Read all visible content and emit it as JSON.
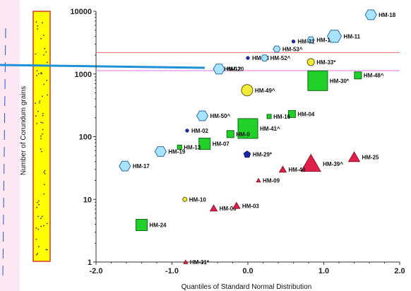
{
  "colors": {
    "background": "#ffffff",
    "bar_fill": "#ffff00",
    "bar_stroke": "#d23a2a",
    "regression_line": "#1f8fd6",
    "line_upper": "#e87070",
    "line_lower": "#e070e0",
    "hexagon": "#a8e4ff",
    "square": "#22d02a",
    "triangle": "#e0204a",
    "circle_yellow": "#f2ec3a",
    "circle_navy": "#1a2aa8"
  },
  "icons": {
    "hexagon": "hexagon-marker",
    "square": "square-marker",
    "triangle": "triangle-marker",
    "circle": "circle-marker",
    "diamond": "diamond-marker",
    "pentagon": "pentagon-marker"
  },
  "chart_data": {
    "type": "scatter",
    "title": "",
    "xlabel": "Quantiles of Standard Normal Distribution",
    "ylabel": "Number of Corundum grains",
    "xlim": [
      -2.0,
      2.0
    ],
    "ylim": [
      1,
      10000
    ],
    "yscale": "log",
    "grid": false,
    "x_ticks": [
      "-2.0",
      "-1.0",
      "0.0",
      "1.0",
      "2.0"
    ],
    "y_ticks": [
      "1",
      "10",
      "100",
      "1000",
      "10000"
    ],
    "y_tick_values": [
      1,
      10,
      100,
      1000,
      10000
    ],
    "x_tick_values": [
      -2,
      -1,
      0,
      1,
      2
    ],
    "reference_lines": [
      {
        "y": 2200,
        "color": "#e87070"
      },
      {
        "y": 1130,
        "color": "#e070e0"
      }
    ],
    "points": [
      {
        "label": "HM-18",
        "x": 1.62,
        "y": 8800,
        "shape": "hexagon",
        "size": "m"
      },
      {
        "label": "HM-11",
        "x": 1.14,
        "y": 4000,
        "shape": "hexagon",
        "size": "l"
      },
      {
        "label": "HM-1",
        "x": 0.83,
        "y": 3500,
        "shape": "hexagon",
        "size": "s"
      },
      {
        "label": "HM-31",
        "x": 0.6,
        "y": 3300,
        "shape": "circle",
        "size": "xs"
      },
      {
        "label": "HM-53^",
        "x": 0.38,
        "y": 2500,
        "shape": "hexagon",
        "size": "s"
      },
      {
        "label": "HM-58",
        "x": 0.0,
        "y": 1800,
        "shape": "circle",
        "size": "xs"
      },
      {
        "label": "HM-52^",
        "x": 0.22,
        "y": 1800,
        "shape": "hexagon",
        "size": "s"
      },
      {
        "label": "HM-33*",
        "x": 0.83,
        "y": 1550,
        "shape": "circle_yellow",
        "size": "s"
      },
      {
        "label": "HM-12",
        "x": -0.37,
        "y": 1200,
        "shape": "circle_yellow",
        "size": "xs"
      },
      {
        "label": "HM-20",
        "x": -0.38,
        "y": 1200,
        "shape": "hexagon",
        "size": "m"
      },
      {
        "label": "HM-48^",
        "x": 1.45,
        "y": 950,
        "shape": "square",
        "size": "s"
      },
      {
        "label": "HM-30*",
        "x": 0.92,
        "y": 780,
        "shape": "square",
        "size": "xl"
      },
      {
        "label": "HM-49^",
        "x": -0.01,
        "y": 550,
        "shape": "circle_yellow",
        "size": "m"
      },
      {
        "label": "HM-04",
        "x": 0.58,
        "y": 230,
        "shape": "square",
        "size": "s"
      },
      {
        "label": "HM-16",
        "x": 0.28,
        "y": 210,
        "shape": "square",
        "size": "xs"
      },
      {
        "label": "HM-50^",
        "x": -0.6,
        "y": 215,
        "shape": "hexagon",
        "size": "m"
      },
      {
        "label": "HM-41^",
        "x": 0.0,
        "y": 135,
        "shape": "square",
        "size": "xl"
      },
      {
        "label": "HM-02",
        "x": -0.8,
        "y": 125,
        "shape": "circle",
        "size": "xs"
      },
      {
        "label": "HM-0",
        "x": -0.23,
        "y": 110,
        "shape": "square",
        "size": "s"
      },
      {
        "label": "HM-07",
        "x": -0.57,
        "y": 77,
        "shape": "square",
        "size": "m"
      },
      {
        "label": "HM-13",
        "x": -0.9,
        "y": 68,
        "shape": "square",
        "size": "xs"
      },
      {
        "label": "HM-19",
        "x": -1.15,
        "y": 58,
        "shape": "hexagon",
        "size": "m"
      },
      {
        "label": "HM-29*",
        "x": -0.01,
        "y": 52,
        "shape": "pentagon",
        "size": "s"
      },
      {
        "label": "HM-17",
        "x": -1.62,
        "y": 34,
        "shape": "hexagon",
        "size": "m"
      },
      {
        "label": "HM-39^",
        "x": 0.83,
        "y": 37,
        "shape": "triangle",
        "size": "xl"
      },
      {
        "label": "HM-25",
        "x": 1.4,
        "y": 47,
        "shape": "triangle",
        "size": "m"
      },
      {
        "label": "HM-40",
        "x": 0.46,
        "y": 30,
        "shape": "triangle",
        "size": "s"
      },
      {
        "label": "HM-09",
        "x": 0.14,
        "y": 20,
        "shape": "triangle",
        "size": "xs"
      },
      {
        "label": "HM-10",
        "x": -0.83,
        "y": 10,
        "shape": "circle_yellow",
        "size": "xs"
      },
      {
        "label": "HM-06",
        "x": -0.45,
        "y": 7.2,
        "shape": "triangle",
        "size": "s"
      },
      {
        "label": "HM-03",
        "x": -0.15,
        "y": 7.9,
        "shape": "triangle",
        "size": "s"
      },
      {
        "label": "HM-24",
        "x": -1.4,
        "y": 3.9,
        "shape": "square",
        "size": "m"
      },
      {
        "label": "HM-31*",
        "x": -0.82,
        "y": 1.0,
        "shape": "triangle",
        "size": "xs"
      }
    ]
  }
}
